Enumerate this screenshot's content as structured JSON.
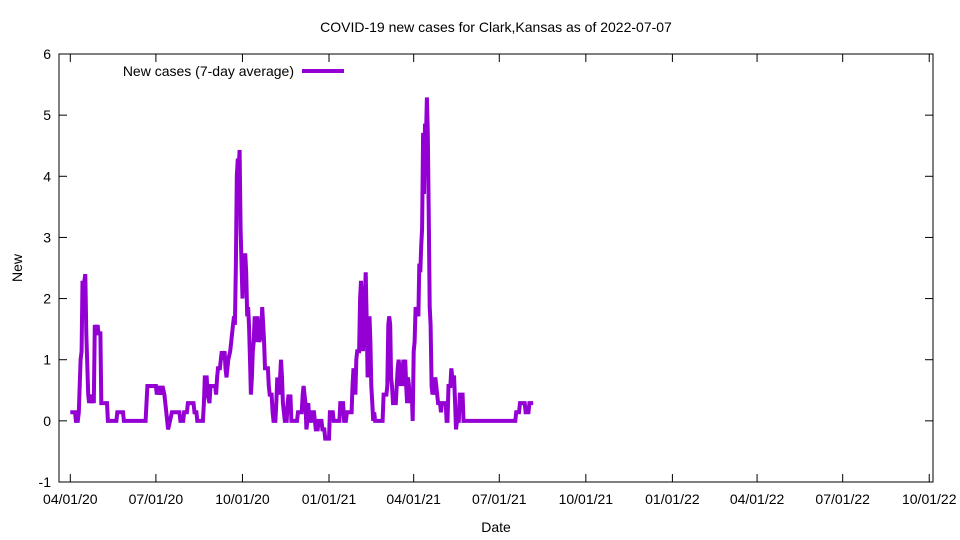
{
  "chart_data": {
    "type": "line",
    "title": "COVID-19 new cases for Clark,Kansas as of 2022-07-07",
    "xlabel": "Date",
    "ylabel": "New",
    "ylim": [
      -1,
      6
    ],
    "xlim": [
      "2020-03-20",
      "2022-10-05"
    ],
    "yticks": [
      -1,
      0,
      1,
      2,
      3,
      4,
      5,
      6
    ],
    "xticks": [
      {
        "date": "2020-04-01",
        "label": "04/01/20"
      },
      {
        "date": "2020-07-01",
        "label": "07/01/20"
      },
      {
        "date": "2020-10-01",
        "label": "10/01/20"
      },
      {
        "date": "2021-01-01",
        "label": "01/01/21"
      },
      {
        "date": "2021-04-01",
        "label": "04/01/21"
      },
      {
        "date": "2021-07-01",
        "label": "07/01/21"
      },
      {
        "date": "2021-10-01",
        "label": "10/01/21"
      },
      {
        "date": "2022-01-01",
        "label": "01/01/22"
      },
      {
        "date": "2022-04-01",
        "label": "04/01/22"
      },
      {
        "date": "2022-07-01",
        "label": "07/01/22"
      },
      {
        "date": "2022-10-01",
        "label": "10/01/22"
      }
    ],
    "grid": false,
    "legend_position": "top-left",
    "series": [
      {
        "name": "New cases (7-day average)",
        "color": "#9400d3",
        "points": [
          [
            "2020-04-01",
            0.14
          ],
          [
            "2020-04-06",
            0.14
          ],
          [
            "2020-04-07",
            0.0
          ],
          [
            "2020-04-09",
            0.0
          ],
          [
            "2020-04-10",
            0.14
          ],
          [
            "2020-04-12",
            1.0
          ],
          [
            "2020-04-13",
            1.14
          ],
          [
            "2020-04-14",
            2.29
          ],
          [
            "2020-04-15",
            2.0
          ],
          [
            "2020-04-16",
            2.29
          ],
          [
            "2020-04-17",
            2.4
          ],
          [
            "2020-04-18",
            1.43
          ],
          [
            "2020-04-20",
            0.43
          ],
          [
            "2020-04-21",
            0.29
          ],
          [
            "2020-04-22",
            0.43
          ],
          [
            "2020-04-23",
            0.29
          ],
          [
            "2020-04-24",
            0.43
          ],
          [
            "2020-04-26",
            0.29
          ],
          [
            "2020-04-27",
            1.57
          ],
          [
            "2020-04-29",
            1.43
          ],
          [
            "2020-04-30",
            1.57
          ],
          [
            "2020-05-01",
            1.43
          ],
          [
            "2020-05-03",
            1.43
          ],
          [
            "2020-05-04",
            0.29
          ],
          [
            "2020-05-10",
            0.29
          ],
          [
            "2020-05-11",
            0.0
          ],
          [
            "2020-05-20",
            0.0
          ],
          [
            "2020-05-21",
            0.14
          ],
          [
            "2020-05-27",
            0.14
          ],
          [
            "2020-05-28",
            0.0
          ],
          [
            "2020-06-20",
            0.0
          ],
          [
            "2020-06-21",
            0.29
          ],
          [
            "2020-06-22",
            0.57
          ],
          [
            "2020-07-01",
            0.57
          ],
          [
            "2020-07-02",
            0.43
          ],
          [
            "2020-07-04",
            0.57
          ],
          [
            "2020-07-06",
            0.43
          ],
          [
            "2020-07-08",
            0.57
          ],
          [
            "2020-07-10",
            0.43
          ],
          [
            "2020-07-12",
            0.14
          ],
          [
            "2020-07-13",
            0.0
          ],
          [
            "2020-07-14",
            -0.14
          ],
          [
            "2020-07-16",
            0.0
          ],
          [
            "2020-07-18",
            0.14
          ],
          [
            "2020-07-26",
            0.14
          ],
          [
            "2020-07-27",
            0.0
          ],
          [
            "2020-07-30",
            0.0
          ],
          [
            "2020-07-31",
            0.14
          ],
          [
            "2020-08-03",
            0.14
          ],
          [
            "2020-08-04",
            0.29
          ],
          [
            "2020-08-10",
            0.29
          ],
          [
            "2020-08-11",
            0.14
          ],
          [
            "2020-08-13",
            0.14
          ],
          [
            "2020-08-14",
            0.0
          ],
          [
            "2020-08-20",
            0.0
          ],
          [
            "2020-08-21",
            0.29
          ],
          [
            "2020-08-22",
            0.71
          ],
          [
            "2020-08-24",
            0.71
          ],
          [
            "2020-08-25",
            0.43
          ],
          [
            "2020-08-27",
            0.29
          ],
          [
            "2020-08-28",
            0.57
          ],
          [
            "2020-09-02",
            0.57
          ],
          [
            "2020-09-03",
            0.43
          ],
          [
            "2020-09-04",
            0.71
          ],
          [
            "2020-09-05",
            0.86
          ],
          [
            "2020-09-07",
            0.86
          ],
          [
            "2020-09-08",
            1.0
          ],
          [
            "2020-09-09",
            1.14
          ],
          [
            "2020-09-10",
            1.0
          ],
          [
            "2020-09-12",
            1.14
          ],
          [
            "2020-09-13",
            0.86
          ],
          [
            "2020-09-14",
            0.71
          ],
          [
            "2020-09-15",
            0.86
          ],
          [
            "2020-09-16",
            1.0
          ],
          [
            "2020-09-18",
            1.14
          ],
          [
            "2020-09-19",
            1.29
          ],
          [
            "2020-09-21",
            1.57
          ],
          [
            "2020-09-22",
            1.71
          ],
          [
            "2020-09-23",
            1.57
          ],
          [
            "2020-09-24",
            2.57
          ],
          [
            "2020-09-25",
            4.0
          ],
          [
            "2020-09-26",
            4.29
          ],
          [
            "2020-09-27",
            4.14
          ],
          [
            "2020-09-28",
            4.43
          ],
          [
            "2020-09-29",
            3.14
          ],
          [
            "2020-09-30",
            2.57
          ],
          [
            "2020-10-01",
            2.0
          ],
          [
            "2020-10-02",
            2.71
          ],
          [
            "2020-10-04",
            2.71
          ],
          [
            "2020-10-05",
            2.43
          ],
          [
            "2020-10-06",
            1.71
          ],
          [
            "2020-10-07",
            1.86
          ],
          [
            "2020-10-08",
            1.57
          ],
          [
            "2020-10-09",
            1.0
          ],
          [
            "2020-10-10",
            0.43
          ],
          [
            "2020-10-11",
            0.71
          ],
          [
            "2020-10-12",
            1.14
          ],
          [
            "2020-10-13",
            1.29
          ],
          [
            "2020-10-14",
            1.71
          ],
          [
            "2020-10-15",
            1.29
          ],
          [
            "2020-10-16",
            1.57
          ],
          [
            "2020-10-17",
            1.71
          ],
          [
            "2020-10-18",
            1.43
          ],
          [
            "2020-10-19",
            1.29
          ],
          [
            "2020-10-21",
            1.43
          ],
          [
            "2020-10-22",
            1.86
          ],
          [
            "2020-10-23",
            1.57
          ],
          [
            "2020-10-24",
            1.29
          ],
          [
            "2020-10-25",
            0.86
          ],
          [
            "2020-10-28",
            0.86
          ],
          [
            "2020-10-29",
            0.57
          ],
          [
            "2020-10-30",
            0.43
          ],
          [
            "2020-11-01",
            0.43
          ],
          [
            "2020-11-02",
            0.14
          ],
          [
            "2020-11-03",
            0.0
          ],
          [
            "2020-11-05",
            0.0
          ],
          [
            "2020-11-06",
            0.29
          ],
          [
            "2020-11-07",
            0.71
          ],
          [
            "2020-11-08",
            0.57
          ],
          [
            "2020-11-09",
            0.43
          ],
          [
            "2020-11-10",
            0.71
          ],
          [
            "2020-11-11",
            1.0
          ],
          [
            "2020-11-12",
            0.71
          ],
          [
            "2020-11-13",
            0.29
          ],
          [
            "2020-11-14",
            0.14
          ],
          [
            "2020-11-15",
            0.0
          ],
          [
            "2020-11-17",
            0.0
          ],
          [
            "2020-11-18",
            0.29
          ],
          [
            "2020-11-19",
            0.43
          ],
          [
            "2020-11-20",
            0.29
          ],
          [
            "2020-11-21",
            0.43
          ],
          [
            "2020-11-22",
            0.0
          ],
          [
            "2020-11-28",
            0.0
          ],
          [
            "2020-11-29",
            0.14
          ],
          [
            "2020-12-03",
            0.14
          ],
          [
            "2020-12-04",
            0.43
          ],
          [
            "2020-12-05",
            0.57
          ],
          [
            "2020-12-06",
            0.43
          ],
          [
            "2020-12-07",
            0.29
          ],
          [
            "2020-12-08",
            -0.14
          ],
          [
            "2020-12-09",
            0.0
          ],
          [
            "2020-12-10",
            0.29
          ],
          [
            "2020-12-11",
            0.0
          ],
          [
            "2020-12-13",
            0.0
          ],
          [
            "2020-12-14",
            0.14
          ],
          [
            "2020-12-16",
            0.14
          ],
          [
            "2020-12-17",
            0.0
          ],
          [
            "2020-12-18",
            -0.14
          ],
          [
            "2020-12-20",
            -0.14
          ],
          [
            "2020-12-21",
            0.0
          ],
          [
            "2020-12-24",
            0.0
          ],
          [
            "2020-12-25",
            -0.14
          ],
          [
            "2020-12-27",
            -0.14
          ],
          [
            "2020-12-28",
            -0.29
          ],
          [
            "2021-01-01",
            -0.29
          ],
          [
            "2021-01-02",
            0.14
          ],
          [
            "2021-01-05",
            0.14
          ],
          [
            "2021-01-06",
            0.0
          ],
          [
            "2021-01-12",
            0.0
          ],
          [
            "2021-01-13",
            0.29
          ],
          [
            "2021-01-16",
            0.29
          ],
          [
            "2021-01-17",
            0.0
          ],
          [
            "2021-01-19",
            0.0
          ],
          [
            "2021-01-20",
            0.14
          ],
          [
            "2021-01-25",
            0.14
          ],
          [
            "2021-01-26",
            0.57
          ],
          [
            "2021-01-27",
            0.86
          ],
          [
            "2021-01-28",
            0.71
          ],
          [
            "2021-01-29",
            0.43
          ],
          [
            "2021-01-30",
            1.0
          ],
          [
            "2021-01-31",
            1.14
          ],
          [
            "2021-02-02",
            1.14
          ],
          [
            "2021-02-03",
            2.0
          ],
          [
            "2021-02-04",
            2.29
          ],
          [
            "2021-02-05",
            1.71
          ],
          [
            "2021-02-06",
            1.14
          ],
          [
            "2021-02-07",
            1.43
          ],
          [
            "2021-02-08",
            2.0
          ],
          [
            "2021-02-09",
            2.43
          ],
          [
            "2021-02-10",
            1.71
          ],
          [
            "2021-02-11",
            0.71
          ],
          [
            "2021-02-12",
            1.43
          ],
          [
            "2021-02-13",
            1.71
          ],
          [
            "2021-02-14",
            1.29
          ],
          [
            "2021-02-15",
            0.57
          ],
          [
            "2021-02-16",
            0.29
          ],
          [
            "2021-02-17",
            0.0
          ],
          [
            "2021-02-18",
            0.14
          ],
          [
            "2021-02-19",
            0.0
          ],
          [
            "2021-02-27",
            0.0
          ],
          [
            "2021-02-28",
            0.43
          ],
          [
            "2021-03-03",
            0.43
          ],
          [
            "2021-03-04",
            0.57
          ],
          [
            "2021-03-05",
            1.57
          ],
          [
            "2021-03-06",
            1.71
          ],
          [
            "2021-03-07",
            1.57
          ],
          [
            "2021-03-08",
            0.71
          ],
          [
            "2021-03-09",
            0.57
          ],
          [
            "2021-03-10",
            0.29
          ],
          [
            "2021-03-13",
            0.29
          ],
          [
            "2021-03-14",
            0.57
          ],
          [
            "2021-03-15",
            0.86
          ],
          [
            "2021-03-16",
            1.0
          ],
          [
            "2021-03-17",
            0.86
          ],
          [
            "2021-03-18",
            0.57
          ],
          [
            "2021-03-19",
            0.86
          ],
          [
            "2021-03-20",
            0.57
          ],
          [
            "2021-03-21",
            1.0
          ],
          [
            "2021-03-22",
            0.86
          ],
          [
            "2021-03-23",
            1.0
          ],
          [
            "2021-03-24",
            0.57
          ],
          [
            "2021-03-25",
            0.29
          ],
          [
            "2021-03-26",
            0.71
          ],
          [
            "2021-03-27",
            0.57
          ],
          [
            "2021-03-28",
            0.29
          ],
          [
            "2021-03-30",
            0.43
          ],
          [
            "2021-03-31",
            0.0
          ],
          [
            "2021-04-01",
            1.14
          ],
          [
            "2021-04-02",
            1.29
          ],
          [
            "2021-04-03",
            1.86
          ],
          [
            "2021-04-04",
            1.71
          ],
          [
            "2021-04-05",
            1.86
          ],
          [
            "2021-04-06",
            1.71
          ],
          [
            "2021-04-07",
            2.57
          ],
          [
            "2021-04-08",
            2.43
          ],
          [
            "2021-04-09",
            2.86
          ],
          [
            "2021-04-10",
            3.14
          ],
          [
            "2021-04-11",
            4.71
          ],
          [
            "2021-04-12",
            3.71
          ],
          [
            "2021-04-13",
            4.86
          ],
          [
            "2021-04-14",
            4.57
          ],
          [
            "2021-04-15",
            5.29
          ],
          [
            "2021-04-16",
            4.71
          ],
          [
            "2021-04-17",
            3.43
          ],
          [
            "2021-04-18",
            1.86
          ],
          [
            "2021-04-19",
            1.57
          ],
          [
            "2021-04-20",
            0.57
          ],
          [
            "2021-04-21",
            0.43
          ],
          [
            "2021-04-22",
            0.57
          ],
          [
            "2021-04-23",
            0.43
          ],
          [
            "2021-04-24",
            0.71
          ],
          [
            "2021-04-25",
            0.57
          ],
          [
            "2021-04-26",
            0.43
          ],
          [
            "2021-04-27",
            0.29
          ],
          [
            "2021-04-29",
            0.29
          ],
          [
            "2021-04-30",
            0.14
          ],
          [
            "2021-05-01",
            0.29
          ],
          [
            "2021-05-05",
            0.29
          ],
          [
            "2021-05-06",
            0.0
          ],
          [
            "2021-05-07",
            0.0
          ],
          [
            "2021-05-08",
            0.57
          ],
          [
            "2021-05-10",
            0.57
          ],
          [
            "2021-05-11",
            0.86
          ],
          [
            "2021-05-12",
            0.71
          ],
          [
            "2021-05-14",
            0.71
          ],
          [
            "2021-05-15",
            0.29
          ],
          [
            "2021-05-16",
            -0.14
          ],
          [
            "2021-05-17",
            0.0
          ],
          [
            "2021-05-19",
            0.0
          ],
          [
            "2021-05-20",
            0.43
          ],
          [
            "2021-05-23",
            0.43
          ],
          [
            "2021-05-24",
            0.0
          ],
          [
            "2021-07-18",
            0.0
          ],
          [
            "2021-07-19",
            0.14
          ],
          [
            "2021-07-22",
            0.14
          ],
          [
            "2021-07-23",
            0.29
          ],
          [
            "2021-07-28",
            0.29
          ],
          [
            "2021-07-29",
            0.14
          ],
          [
            "2021-08-01",
            0.14
          ],
          [
            "2021-08-02",
            0.29
          ],
          [
            "2021-08-06",
            0.29
          ]
        ]
      }
    ]
  }
}
